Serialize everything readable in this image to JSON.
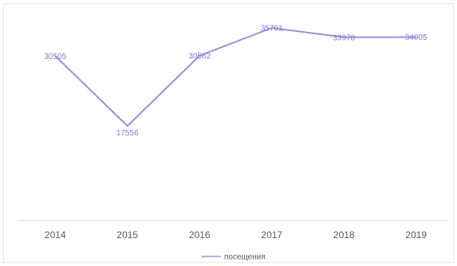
{
  "chart_data": {
    "type": "line",
    "title": "",
    "xlabel": "",
    "ylabel": "",
    "categories": [
      "2014",
      "2015",
      "2016",
      "2017",
      "2018",
      "2019"
    ],
    "series": [
      {
        "name": "посещения",
        "values": [
          30505,
          17556,
          30562,
          35701,
          33978,
          34005
        ],
        "color": "#9b8fe0"
      }
    ],
    "ylim": [
      0,
      40000
    ],
    "grid": false,
    "legend": "bottom",
    "data_labels": true
  }
}
